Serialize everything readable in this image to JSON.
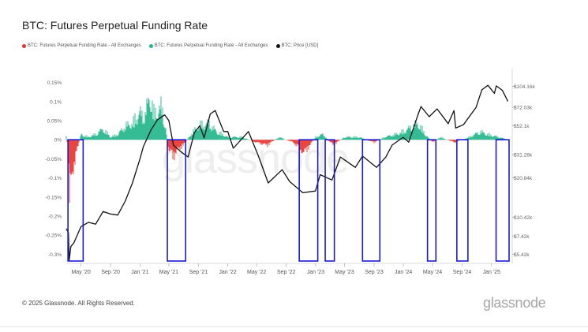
{
  "title": "BTC: Futures Perpetual Funding Rate",
  "legend": [
    {
      "label": "BTC: Futures Perpetual Funding Rate - All Exchanges",
      "color": "#e8322d"
    },
    {
      "label": "BTC: Futures Perpetual Funding Rate - All Exchanges",
      "color": "#21b58a"
    },
    {
      "label": "BTC: Price [USD]",
      "color": "#111111"
    }
  ],
  "watermark": "glassnode",
  "footer": {
    "copyright": "© 2025 Glassnode. All Rights Reserved.",
    "brand": "glassnode"
  },
  "chart_data": {
    "type": "line",
    "x_tick_labels": [
      "May '20",
      "Sep '20",
      "Jan '21",
      "May '21",
      "Sep '21",
      "Jan '22",
      "May '22",
      "Sep '22",
      "Jan '23",
      "May '23",
      "Sep '23",
      "Jan '24",
      "May '24",
      "Sep '24",
      "Jan '25"
    ],
    "x_tick_dates": [
      "2020-05-01",
      "2020-09-01",
      "2021-01-01",
      "2021-05-01",
      "2021-09-01",
      "2022-01-01",
      "2022-05-01",
      "2022-09-01",
      "2023-01-01",
      "2023-05-01",
      "2023-09-01",
      "2024-01-01",
      "2024-05-01",
      "2024-09-01",
      "2025-01-01"
    ],
    "x_range": [
      "2020-03-01",
      "2025-03-15"
    ],
    "left_axis": {
      "ticks": [
        0.15,
        0.1,
        0.05,
        0,
        -0.05,
        -0.1,
        -0.15,
        -0.2,
        -0.25,
        -0.3
      ],
      "labels": [
        "0.15%",
        "0.1%",
        "0.05%",
        "0%",
        "-0.05%",
        "-0.1%",
        "-0.15%",
        "-0.2%",
        "-0.25%",
        "-0.3%"
      ],
      "range": [
        -0.32,
        0.17
      ]
    },
    "right_axis": {
      "scale": "log",
      "ticks": [
        104160,
        72030,
        52100,
        31260,
        20840,
        10420,
        7420,
        5420
      ],
      "labels": [
        "$104.16k",
        "$72.03k",
        "$52.1k",
        "$31.26k",
        "$20.84k",
        "$10.42k",
        "$7.42k",
        "$5.42k"
      ]
    },
    "series": [
      {
        "name": "BTC: Futures Perpetual Funding Rate - All Exchanges",
        "kind": "funding_rate",
        "color_positive": "#21b58a",
        "color_negative": "#e8322d",
        "points": [
          [
            "2020-03-01",
            0.01
          ],
          [
            "2020-03-10",
            -0.05
          ],
          [
            "2020-03-13",
            -0.28
          ],
          [
            "2020-03-16",
            -0.2
          ],
          [
            "2020-03-25",
            -0.12
          ],
          [
            "2020-04-15",
            -0.04
          ],
          [
            "2020-05-01",
            0.02
          ],
          [
            "2020-06-01",
            0.01
          ],
          [
            "2020-07-01",
            0.02
          ],
          [
            "2020-08-01",
            0.04
          ],
          [
            "2020-09-01",
            0.01
          ],
          [
            "2020-10-01",
            0.02
          ],
          [
            "2020-11-01",
            0.05
          ],
          [
            "2020-12-01",
            0.06
          ],
          [
            "2021-01-01",
            0.1
          ],
          [
            "2021-01-15",
            0.08
          ],
          [
            "2021-02-15",
            0.16
          ],
          [
            "2021-03-01",
            0.09
          ],
          [
            "2021-04-01",
            0.12
          ],
          [
            "2021-04-15",
            0.06
          ],
          [
            "2021-05-01",
            -0.04
          ],
          [
            "2021-05-20",
            -0.06
          ],
          [
            "2021-06-15",
            -0.03
          ],
          [
            "2021-07-01",
            -0.02
          ],
          [
            "2021-08-01",
            0.02
          ],
          [
            "2021-09-01",
            0.05
          ],
          [
            "2021-10-15",
            0.06
          ],
          [
            "2021-11-15",
            0.03
          ],
          [
            "2022-01-01",
            0.01
          ],
          [
            "2022-03-01",
            0.01
          ],
          [
            "2022-05-01",
            -0.01
          ],
          [
            "2022-06-15",
            -0.02
          ],
          [
            "2022-08-01",
            0.01
          ],
          [
            "2022-10-01",
            -0.01
          ],
          [
            "2022-11-15",
            -0.05
          ],
          [
            "2023-01-01",
            0.01
          ],
          [
            "2023-02-01",
            0.02
          ],
          [
            "2023-03-15",
            -0.02
          ],
          [
            "2023-05-01",
            0.01
          ],
          [
            "2023-07-01",
            0.01
          ],
          [
            "2023-09-01",
            -0.01
          ],
          [
            "2023-10-15",
            0.01
          ],
          [
            "2023-12-01",
            0.02
          ],
          [
            "2024-01-01",
            0.03
          ],
          [
            "2024-03-01",
            0.06
          ],
          [
            "2024-04-01",
            0.02
          ],
          [
            "2024-05-01",
            -0.01
          ],
          [
            "2024-06-01",
            0.01
          ],
          [
            "2024-08-01",
            -0.01
          ],
          [
            "2024-10-01",
            0.01
          ],
          [
            "2024-11-15",
            0.03
          ],
          [
            "2024-12-15",
            0.02
          ],
          [
            "2025-02-01",
            0.01
          ],
          [
            "2025-03-10",
            0.0
          ]
        ]
      },
      {
        "name": "BTC: Price [USD]",
        "kind": "price",
        "color": "#111111",
        "points": [
          [
            "2020-03-01",
            8500
          ],
          [
            "2020-03-10",
            7900
          ],
          [
            "2020-03-13",
            4900
          ],
          [
            "2020-03-20",
            6200
          ],
          [
            "2020-04-01",
            6600
          ],
          [
            "2020-05-01",
            8800
          ],
          [
            "2020-06-01",
            9500
          ],
          [
            "2020-07-01",
            9200
          ],
          [
            "2020-08-01",
            11500
          ],
          [
            "2020-09-01",
            11000
          ],
          [
            "2020-10-01",
            10800
          ],
          [
            "2020-11-01",
            13800
          ],
          [
            "2020-12-01",
            19000
          ],
          [
            "2021-01-01",
            29000
          ],
          [
            "2021-01-15",
            36000
          ],
          [
            "2021-02-15",
            48000
          ],
          [
            "2021-03-15",
            58000
          ],
          [
            "2021-04-14",
            63000
          ],
          [
            "2021-05-01",
            57000
          ],
          [
            "2021-05-20",
            37000
          ],
          [
            "2021-06-20",
            33000
          ],
          [
            "2021-07-20",
            30000
          ],
          [
            "2021-08-15",
            46000
          ],
          [
            "2021-09-07",
            52000
          ],
          [
            "2021-09-25",
            42000
          ],
          [
            "2021-10-20",
            64000
          ],
          [
            "2021-11-10",
            68000
          ],
          [
            "2021-12-15",
            47000
          ],
          [
            "2022-01-01",
            47000
          ],
          [
            "2022-01-24",
            35000
          ],
          [
            "2022-03-28",
            47000
          ],
          [
            "2022-05-10",
            30000
          ],
          [
            "2022-06-18",
            19000
          ],
          [
            "2022-08-15",
            24000
          ],
          [
            "2022-09-15",
            19500
          ],
          [
            "2022-11-09",
            16000
          ],
          [
            "2022-12-31",
            16500
          ],
          [
            "2023-01-20",
            22000
          ],
          [
            "2023-03-10",
            20000
          ],
          [
            "2023-04-14",
            30000
          ],
          [
            "2023-06-15",
            25000
          ],
          [
            "2023-07-15",
            30500
          ],
          [
            "2023-09-11",
            25000
          ],
          [
            "2023-10-20",
            30000
          ],
          [
            "2023-11-15",
            37000
          ],
          [
            "2023-12-31",
            42500
          ],
          [
            "2024-01-23",
            39000
          ],
          [
            "2024-02-29",
            62000
          ],
          [
            "2024-03-14",
            73000
          ],
          [
            "2024-04-17",
            61000
          ],
          [
            "2024-05-20",
            70000
          ],
          [
            "2024-07-05",
            54000
          ],
          [
            "2024-07-29",
            68000
          ],
          [
            "2024-08-05",
            50000
          ],
          [
            "2024-09-06",
            53000
          ],
          [
            "2024-10-29",
            72000
          ],
          [
            "2024-11-22",
            98000
          ],
          [
            "2024-12-17",
            106000
          ],
          [
            "2025-01-13",
            92000
          ],
          [
            "2025-01-21",
            105000
          ],
          [
            "2025-02-15",
            97000
          ],
          [
            "2025-03-10",
            80000
          ]
        ]
      }
    ],
    "highlight_boxes": [
      {
        "start": "2020-03-08",
        "end": "2020-05-10"
      },
      {
        "start": "2021-04-25",
        "end": "2021-07-10"
      },
      {
        "start": "2022-10-25",
        "end": "2023-01-10"
      },
      {
        "start": "2023-02-10",
        "end": "2023-03-20"
      },
      {
        "start": "2023-07-15",
        "end": "2023-09-25"
      },
      {
        "start": "2024-04-10",
        "end": "2024-05-15"
      },
      {
        "start": "2024-08-10",
        "end": "2024-09-25"
      },
      {
        "start": "2025-01-20",
        "end": "2025-03-15"
      }
    ]
  }
}
